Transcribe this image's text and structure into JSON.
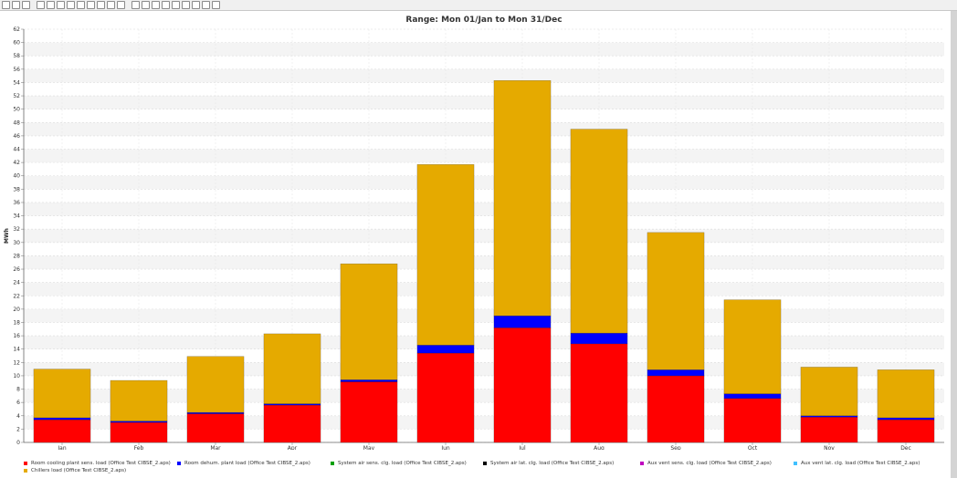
{
  "toolbar": {
    "buttons": [
      {
        "name": "save-icon"
      },
      {
        "name": "print-icon"
      },
      {
        "name": "copy-icon"
      },
      {
        "name": "sep"
      },
      {
        "name": "line-chart-icon"
      },
      {
        "name": "table-icon"
      },
      {
        "name": "data-icon"
      },
      {
        "name": "flag-icon"
      },
      {
        "name": "axis-icon"
      },
      {
        "name": "sum-icon"
      },
      {
        "name": "stop-icon"
      },
      {
        "name": "export-icon"
      },
      {
        "name": "zoom-icon"
      },
      {
        "name": "sep"
      },
      {
        "name": "grid-icon"
      },
      {
        "name": "area-chart-icon"
      },
      {
        "name": "stacked-chart-icon"
      },
      {
        "name": "bar-chart-icon"
      },
      {
        "name": "histogram-icon"
      },
      {
        "name": "pie-chart-icon"
      },
      {
        "name": "color-icon"
      },
      {
        "name": "legend-icon"
      },
      {
        "name": "settings-icon"
      }
    ]
  },
  "chart_data": {
    "type": "bar",
    "stacked": true,
    "title": "Range: Mon 01/Jan to Mon 31/Dec",
    "xlabel": "",
    "ylabel": "MWh",
    "ylim": [
      0,
      62
    ],
    "ytick_step": 2,
    "grid": true,
    "legend_position": "bottom",
    "categories": [
      "Jan",
      "Feb",
      "Mar",
      "Apr",
      "May",
      "Jun",
      "Jul",
      "Aug",
      "Sep",
      "Oct",
      "Nov",
      "Dec"
    ],
    "series": [
      {
        "name": "Room cooling plant sens. load  (Office Test CIBSE_2.aps)",
        "color": "#ff0000",
        "values": [
          3.4,
          3.0,
          4.3,
          5.6,
          9.1,
          13.4,
          17.2,
          14.8,
          10.0,
          6.6,
          3.8,
          3.4
        ]
      },
      {
        "name": "Room dehum. plant load  (Office Test CIBSE_2.aps)",
        "color": "#0000ff",
        "values": [
          0.3,
          0.2,
          0.2,
          0.2,
          0.3,
          1.2,
          1.8,
          1.6,
          0.9,
          0.7,
          0.2,
          0.3
        ]
      },
      {
        "name": "System air sens. clg. load  (Office Test CIBSE_2.aps)",
        "color": "#00a000",
        "values": [
          0,
          0,
          0,
          0,
          0,
          0,
          0,
          0,
          0,
          0,
          0,
          0
        ]
      },
      {
        "name": "System air lat. clg. load  (Office Test CIBSE_2.aps)",
        "color": "#000000",
        "values": [
          0,
          0,
          0,
          0,
          0,
          0,
          0,
          0,
          0,
          0,
          0,
          0
        ]
      },
      {
        "name": "Aux vent sens. clg. load  (Office Test CIBSE_2.aps)",
        "color": "#c000c0",
        "values": [
          0,
          0,
          0,
          0,
          0,
          0,
          0,
          0,
          0,
          0,
          0,
          0
        ]
      },
      {
        "name": "Aux vent lat. clg. load  (Office Test CIBSE_2.aps)",
        "color": "#40c0ff",
        "values": [
          0,
          0,
          0,
          0,
          0,
          0,
          0,
          0,
          0,
          0,
          0,
          0
        ]
      },
      {
        "name": "Chillers load  (Office Test CIBSE_2.aps)",
        "color": "#e5aa00",
        "values": [
          7.3,
          6.1,
          8.4,
          10.5,
          17.4,
          27.1,
          35.3,
          30.6,
          20.6,
          14.1,
          7.3,
          7.2
        ]
      }
    ]
  }
}
